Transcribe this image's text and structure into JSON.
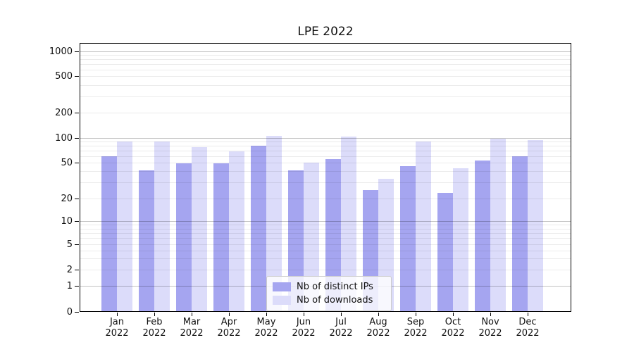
{
  "title": "LPE 2022",
  "legend": {
    "items": [
      {
        "label": "Nb of distinct IPs",
        "color": "#a5a5f0"
      },
      {
        "label": "Nb of downloads",
        "color": "#dcdcfa"
      }
    ]
  },
  "axes": {
    "y_tick_labels": [
      "0",
      "1",
      "2",
      "5",
      "10",
      "20",
      "50",
      "100",
      "200",
      "500",
      "1000"
    ],
    "x_months": [
      "Jan",
      "Feb",
      "Mar",
      "Apr",
      "May",
      "Jun",
      "Jul",
      "Aug",
      "Sep",
      "Oct",
      "Nov",
      "Dec"
    ],
    "x_year": "2022"
  },
  "chart_data": {
    "type": "bar",
    "title": "LPE 2022",
    "categories": [
      "Jan 2022",
      "Feb 2022",
      "Mar 2022",
      "Apr 2022",
      "May 2022",
      "Jun 2022",
      "Jul 2022",
      "Aug 2022",
      "Sep 2022",
      "Oct 2022",
      "Nov 2022",
      "Dec 2022"
    ],
    "series": [
      {
        "name": "Nb of distinct IPs",
        "color": "#a5a5f0",
        "values": [
          60,
          41,
          49,
          49,
          80,
          41,
          55,
          25,
          46,
          23,
          53,
          60
        ]
      },
      {
        "name": "Nb of downloads",
        "color": "#dcdcfa",
        "values": [
          90,
          90,
          77,
          68,
          105,
          50,
          104,
          33,
          90,
          43,
          98,
          95
        ]
      }
    ],
    "xlabel": "",
    "ylabel": "",
    "yscale": "symlog",
    "y_ticks": [
      0,
      1,
      2,
      5,
      10,
      20,
      50,
      100,
      200,
      500,
      1000
    ],
    "ylim": [
      0,
      1100
    ],
    "grid": "horizontal, major+minor, drawn above bars",
    "legend_position": "lower center"
  }
}
